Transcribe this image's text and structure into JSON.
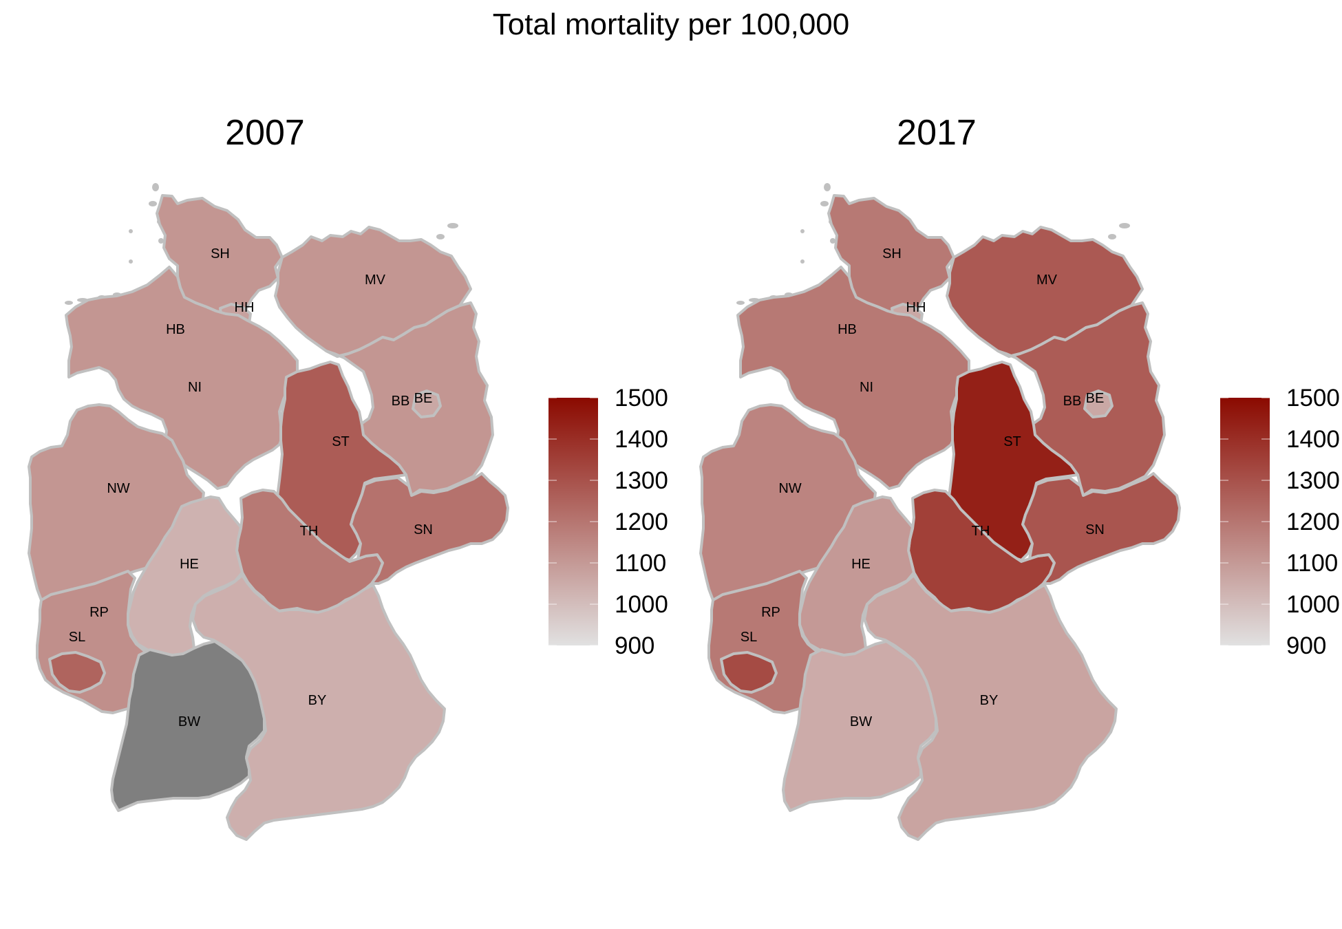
{
  "title": "Total mortality per 100,000",
  "legend": {
    "ticks": [
      900,
      1000,
      1100,
      1200,
      1300,
      1400,
      1500
    ],
    "low_color": "#e1e1e1",
    "high_color": "#8b0a00"
  },
  "missing_color": "#7f7f7f",
  "border_color": "#c0c0c0",
  "chart_data": {
    "type": "choropleth",
    "scale_range": [
      900,
      1500
    ],
    "panels": [
      {
        "year": "2007",
        "states": [
          {
            "code": "SH",
            "value": 1110
          },
          {
            "code": "HH",
            "value": 1080
          },
          {
            "code": "HB",
            "value": 1120
          },
          {
            "code": "NI",
            "value": 1110
          },
          {
            "code": "MV",
            "value": 1110
          },
          {
            "code": "BB",
            "value": 1110
          },
          {
            "code": "BE",
            "value": 1060
          },
          {
            "code": "ST",
            "value": 1270
          },
          {
            "code": "NW",
            "value": 1110
          },
          {
            "code": "TH",
            "value": 1190
          },
          {
            "code": "SN",
            "value": 1210
          },
          {
            "code": "HE",
            "value": 1030
          },
          {
            "code": "RP",
            "value": 1130
          },
          {
            "code": "SL",
            "value": 1250
          },
          {
            "code": "BW",
            "value": null
          },
          {
            "code": "BY",
            "value": 1040
          }
        ]
      },
      {
        "year": "2017",
        "states": [
          {
            "code": "SH",
            "value": 1190
          },
          {
            "code": "HH",
            "value": 1060
          },
          {
            "code": "HB",
            "value": 1190
          },
          {
            "code": "NI",
            "value": 1190
          },
          {
            "code": "MV",
            "value": 1280
          },
          {
            "code": "BB",
            "value": 1270
          },
          {
            "code": "BE",
            "value": 1060
          },
          {
            "code": "ST",
            "value": 1440
          },
          {
            "code": "NW",
            "value": 1160
          },
          {
            "code": "TH",
            "value": 1350
          },
          {
            "code": "SN",
            "value": 1290
          },
          {
            "code": "HE",
            "value": 1100
          },
          {
            "code": "RP",
            "value": 1190
          },
          {
            "code": "SL",
            "value": 1320
          },
          {
            "code": "BW",
            "value": 1050
          },
          {
            "code": "BY",
            "value": 1070
          }
        ]
      }
    ]
  }
}
